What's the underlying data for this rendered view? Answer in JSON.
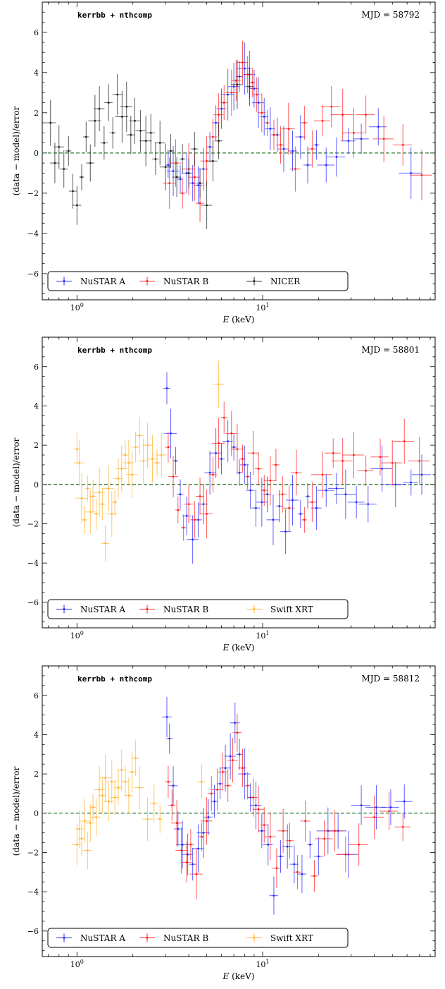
{
  "chart_data": [
    {
      "type": "scatter",
      "model_label": "kerrbb + nthcomp",
      "mjd_label": "MJD = 58792",
      "xlabel": "E (keV)",
      "ylabel": "(data − model)/error",
      "xscale": "log",
      "xlim": [
        0.65,
        85
      ],
      "ylim": [
        -7.3,
        7.5
      ],
      "yticks": [
        -6,
        -4,
        -2,
        0,
        2,
        4,
        6
      ],
      "xtick_labels": [
        "10^0",
        "10^1"
      ],
      "reference_line": {
        "y": 0,
        "color": "#2e7d32",
        "style": "dashed"
      },
      "legend_position": "lower-left",
      "series": [
        {
          "name": "NuSTAR A",
          "color": "#2828ff",
          "x": [
            3.1,
            3.3,
            3.6,
            3.9,
            4.2,
            4.5,
            4.8,
            5.2,
            5.6,
            6.0,
            6.5,
            7.0,
            7.5,
            8.0,
            8.5,
            9.0,
            9.5,
            10.2,
            11.0,
            12.0,
            13.0,
            14.5,
            16.0,
            17.5,
            19.5,
            22.0,
            25.0,
            29.0,
            34.0,
            42.0,
            63.0
          ],
          "y": [
            -0.6,
            -0.9,
            -1.3,
            -1.0,
            -1.5,
            -1.6,
            -0.8,
            0.3,
            1.5,
            2.2,
            2.9,
            3.3,
            3.8,
            4.2,
            3.9,
            3.2,
            2.5,
            1.8,
            1.2,
            0.9,
            0.2,
            0.1,
            0.8,
            -0.6,
            0.4,
            -0.6,
            -0.2,
            0.6,
            0.7,
            1.3,
            -1.0
          ]
        },
        {
          "name": "NuSTAR B",
          "color": "#ff2020",
          "x": [
            3.15,
            3.4,
            3.7,
            4.0,
            4.3,
            4.6,
            5.0,
            5.4,
            5.8,
            6.2,
            6.8,
            7.2,
            7.8,
            8.3,
            8.8,
            9.3,
            9.9,
            10.6,
            11.5,
            12.5,
            13.8,
            15.0,
            16.8,
            18.5,
            21.0,
            23.5,
            27.0,
            31.0,
            36.0,
            45.0,
            57.0,
            72.0
          ],
          "y": [
            -1.5,
            -0.5,
            -2.0,
            -0.8,
            -1.2,
            -2.5,
            -0.4,
            0.8,
            1.9,
            2.5,
            3.0,
            3.6,
            4.5,
            3.9,
            3.5,
            2.9,
            2.0,
            1.5,
            0.9,
            0.4,
            1.2,
            -0.8,
            1.5,
            0.2,
            1.6,
            2.3,
            1.9,
            1.0,
            1.9,
            0.7,
            0.4,
            -1.1
          ]
        },
        {
          "name": "NICER",
          "color": "#222222",
          "x": [
            0.72,
            0.76,
            0.8,
            0.85,
            0.9,
            0.95,
            1.0,
            1.06,
            1.12,
            1.18,
            1.25,
            1.32,
            1.4,
            1.48,
            1.56,
            1.65,
            1.75,
            1.85,
            1.95,
            2.05,
            2.2,
            2.35,
            2.5,
            2.65,
            2.8,
            3.0,
            3.2,
            3.45,
            3.7,
            4.0,
            4.3,
            4.6,
            5.0,
            5.4,
            5.8,
            7.3,
            8.5
          ],
          "y": [
            1.5,
            -0.5,
            0.3,
            -0.8,
            0.1,
            -1.9,
            -2.6,
            -1.2,
            0.8,
            -0.5,
            1.6,
            2.2,
            0.5,
            2.5,
            1.0,
            2.9,
            1.8,
            2.3,
            0.9,
            1.6,
            1.1,
            0.6,
            1.0,
            -0.3,
            0.5,
            -0.7,
            0.1,
            -1.2,
            -0.3,
            -1.0,
            0.2,
            -1.5,
            -2.6,
            -0.4,
            0.6,
            3.4,
            3.3
          ]
        }
      ]
    },
    {
      "type": "scatter",
      "model_label": "kerrbb + nthcomp",
      "mjd_label": "MJD = 58801",
      "xlabel": "E (keV)",
      "ylabel": "(data − model)/error",
      "xscale": "log",
      "xlim": [
        0.65,
        85
      ],
      "ylim": [
        -7.3,
        7.5
      ],
      "yticks": [
        -6,
        -4,
        -2,
        0,
        2,
        4,
        6
      ],
      "xtick_labels": [
        "10^0",
        "10^1"
      ],
      "reference_line": {
        "y": 0,
        "color": "#2e7d32",
        "style": "dashed"
      },
      "legend_position": "lower-left",
      "series": [
        {
          "name": "NuSTAR A",
          "color": "#2828ff",
          "x": [
            3.05,
            3.2,
            3.4,
            3.6,
            3.9,
            4.2,
            4.5,
            4.8,
            5.2,
            5.6,
            6.0,
            6.5,
            7.0,
            7.5,
            8.0,
            8.6,
            9.2,
            9.9,
            10.6,
            11.4,
            12.3,
            13.3,
            14.5,
            16.0,
            17.5,
            19.5,
            22.0,
            25.0,
            28.0,
            32.0,
            37.0,
            44.0,
            52.0,
            63.0,
            72.0
          ],
          "y": [
            4.9,
            2.6,
            1.2,
            -0.5,
            -1.6,
            -2.8,
            -1.8,
            -1.0,
            0.6,
            1.6,
            1.3,
            2.2,
            1.9,
            0.6,
            1.0,
            -0.3,
            -1.2,
            -0.9,
            -0.5,
            -1.8,
            -1.1,
            -2.4,
            -0.8,
            -1.5,
            -0.6,
            -1.2,
            -0.3,
            -0.2,
            -0.5,
            -0.9,
            -1.0,
            0.8,
            0.0,
            0.1,
            0.5
          ]
        },
        {
          "name": "NuSTAR B",
          "color": "#ff2020",
          "x": [
            3.1,
            3.3,
            3.5,
            3.75,
            4.0,
            4.3,
            4.6,
            5.0,
            5.4,
            5.8,
            6.2,
            6.8,
            7.3,
            7.8,
            8.3,
            8.9,
            9.5,
            10.2,
            11.0,
            11.8,
            12.8,
            13.9,
            15.2,
            16.8,
            18.5,
            21.0,
            24.0,
            27.0,
            31.0,
            36.0,
            43.0,
            50.0,
            58.0,
            70.0
          ],
          "y": [
            1.9,
            0.4,
            -1.3,
            -2.2,
            -1.0,
            -1.8,
            -0.6,
            -1.5,
            0.5,
            2.1,
            3.4,
            2.6,
            1.8,
            1.3,
            0.4,
            1.6,
            0.8,
            -0.3,
            0.2,
            1.0,
            -0.5,
            -1.2,
            0.6,
            -1.8,
            -0.9,
            0.5,
            1.6,
            1.2,
            1.5,
            0.7,
            1.4,
            1.1,
            2.2,
            1.2
          ]
        },
        {
          "name": "Swift XRT",
          "color": "#ffb432",
          "x": [
            1.0,
            1.03,
            1.06,
            1.1,
            1.14,
            1.18,
            1.22,
            1.27,
            1.32,
            1.37,
            1.42,
            1.48,
            1.54,
            1.6,
            1.67,
            1.74,
            1.82,
            1.9,
            1.98,
            2.07,
            2.17,
            2.28,
            2.4,
            2.55,
            2.7,
            2.85,
            5.8
          ],
          "y": [
            1.8,
            1.1,
            -0.7,
            -1.8,
            -0.2,
            -1.4,
            -0.6,
            -1.5,
            -0.4,
            -1.0,
            -3.0,
            -0.2,
            -1.5,
            -0.9,
            0.3,
            0.8,
            1.5,
            1.1,
            0.5,
            1.9,
            2.5,
            1.2,
            2.0,
            1.3,
            1.1,
            1.5,
            5.1
          ]
        }
      ]
    },
    {
      "type": "scatter",
      "model_label": "kerrbb + nthcomp",
      "mjd_label": "MJD = 58812",
      "xlabel": "E (keV)",
      "ylabel": "(data − model)/error",
      "xscale": "log",
      "xlim": [
        0.65,
        85
      ],
      "ylim": [
        -7.3,
        7.5
      ],
      "yticks": [
        -6,
        -4,
        -2,
        0,
        2,
        4,
        6
      ],
      "xtick_labels": [
        "10^0",
        "10^1"
      ],
      "reference_line": {
        "y": 0,
        "color": "#2e7d32",
        "style": "dashed"
      },
      "legend_position": "lower-left",
      "series": [
        {
          "name": "NuSTAR A",
          "color": "#2828ff",
          "x": [
            3.05,
            3.15,
            3.3,
            3.5,
            3.7,
            3.95,
            4.2,
            4.5,
            4.8,
            5.1,
            5.5,
            5.9,
            6.3,
            6.7,
            7.1,
            7.5,
            8.0,
            8.6,
            9.2,
            9.9,
            10.7,
            11.5,
            12.5,
            13.6,
            14.8,
            16.3,
            18.0,
            20.0,
            22.5,
            25.5,
            29.0,
            34.0,
            41.0,
            49.0,
            58.0
          ],
          "y": [
            4.9,
            3.8,
            1.4,
            -0.8,
            -1.6,
            -2.1,
            -2.6,
            -1.8,
            -1.0,
            -0.2,
            0.6,
            1.5,
            2.3,
            2.9,
            4.6,
            3.0,
            2.0,
            0.8,
            0.4,
            -0.9,
            -1.6,
            -4.2,
            -2.2,
            -1.7,
            -2.6,
            -3.1,
            -1.6,
            -2.2,
            -0.9,
            -0.9,
            -2.1,
            0.4,
            0.3,
            0.3,
            0.6
          ]
        },
        {
          "name": "NuSTAR B",
          "color": "#ff2020",
          "x": [
            3.1,
            3.25,
            3.45,
            3.65,
            3.9,
            4.1,
            4.4,
            4.7,
            5.0,
            5.3,
            5.7,
            6.1,
            6.5,
            6.9,
            7.3,
            7.8,
            8.3,
            8.9,
            9.5,
            10.2,
            11.0,
            11.9,
            12.9,
            14.0,
            15.4,
            17.0,
            19.0,
            21.5,
            24.5,
            28.0,
            33.0,
            40.0,
            48.0,
            57.0
          ],
          "y": [
            1.6,
            0.4,
            -0.5,
            -1.9,
            -2.5,
            -1.6,
            -3.1,
            -1.2,
            -0.4,
            1.0,
            1.2,
            2.1,
            1.4,
            2.7,
            4.1,
            2.3,
            1.4,
            0.8,
            0.2,
            -0.6,
            -1.2,
            -2.8,
            -0.9,
            -1.4,
            -3.0,
            -0.4,
            -3.2,
            -1.3,
            -0.9,
            -2.1,
            -1.6,
            -0.2,
            0.1,
            -0.7
          ]
        },
        {
          "name": "Swift XRT",
          "color": "#ffb432",
          "x": [
            1.0,
            1.03,
            1.06,
            1.1,
            1.14,
            1.18,
            1.22,
            1.27,
            1.32,
            1.37,
            1.42,
            1.48,
            1.54,
            1.6,
            1.67,
            1.74,
            1.82,
            1.9,
            1.98,
            2.07,
            2.17,
            2.4,
            2.6,
            2.8,
            4.7
          ],
          "y": [
            -1.6,
            -0.8,
            -1.3,
            -0.4,
            -1.9,
            -0.5,
            0.3,
            -0.2,
            1.2,
            0.9,
            1.8,
            0.6,
            1.6,
            0.8,
            1.3,
            2.2,
            1.6,
            0.9,
            2.1,
            2.8,
            1.3,
            -0.3,
            0.5,
            -0.3,
            1.6
          ]
        }
      ]
    }
  ]
}
